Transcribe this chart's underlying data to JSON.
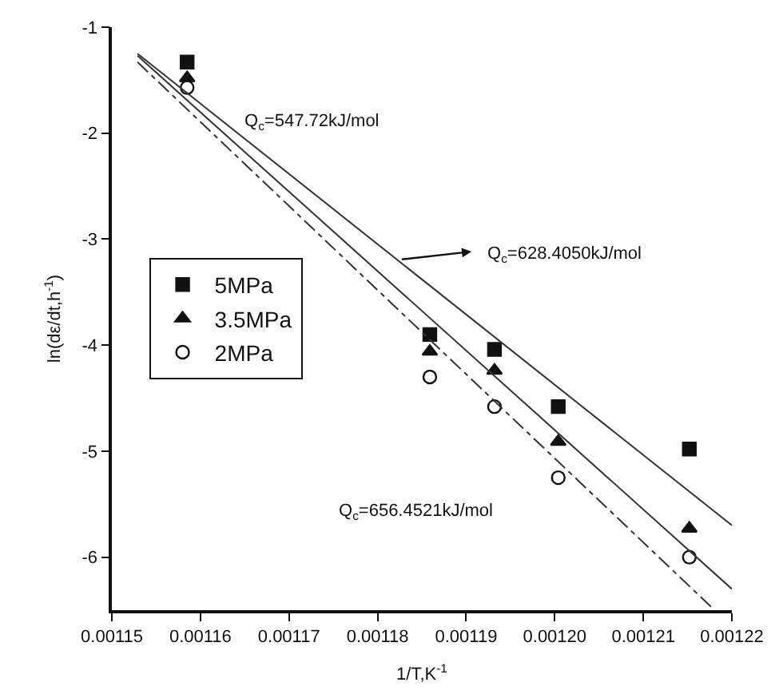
{
  "chart_data": {
    "type": "scatter",
    "xlabel": "1/T,K$^{-1}$",
    "ylabel": "ln(dε/dt,h$^{-1}$)",
    "xlim": [
      0.00115,
      0.00122
    ],
    "xticks": [
      0.00115,
      0.00116,
      0.00117,
      0.00118,
      0.00119,
      {
        "value": 0.0012,
        "label": "0.00120"
      },
      0.00121,
      0.00122
    ],
    "ylim": [
      -6.5,
      -1
    ],
    "yticks": [
      -1,
      -2,
      -3,
      -4,
      -5,
      -6
    ],
    "grid": false,
    "legend": "left",
    "series": [
      {
        "name": "5MPa",
        "color": "#111111",
        "marker": "square",
        "x": [
          0.0011585,
          0.0011859,
          0.0011932,
          0.0012004,
          0.0012152
        ],
        "values": [
          -1.33,
          -3.9,
          -4.04,
          -4.58,
          -4.98
        ]
      },
      {
        "name": "3.5MPa",
        "color": "#111111",
        "marker": "triangle",
        "x": [
          0.0011585,
          0.0011859,
          0.0011932,
          0.0012004,
          0.0012152
        ],
        "values": [
          -1.48,
          -4.06,
          -4.24,
          -4.91,
          -5.73
        ]
      },
      {
        "name": "2MPa",
        "color": "#111111",
        "marker": "circle-open",
        "x": [
          0.0011585,
          0.0011859,
          0.0011932,
          0.0012004,
          0.0012152
        ],
        "values": [
          -1.57,
          -4.3,
          -4.58,
          -5.25,
          -6.0
        ]
      },
      {
        "type": "line",
        "color": "#333333",
        "line_style": "solid",
        "x": [
          0.0011529,
          0.00122
        ],
        "values": [
          -1.25,
          -5.7
        ]
      },
      {
        "type": "line",
        "color": "#333333",
        "line_style": "solid",
        "x": [
          0.0011529,
          0.00122
        ],
        "values": [
          -1.27,
          -6.3
        ]
      },
      {
        "type": "line",
        "color": "#333333",
        "line_style": "dashed",
        "x": [
          0.0011529,
          0.0012178
        ],
        "values": [
          -1.33,
          -6.48
        ]
      }
    ],
    "annotations": [
      "Q$_{c}$=547.72kJ/mol",
      "Q$_{c}$=628.4050kJ/mol",
      "Q$_{c}$=656.4521kJ/mol"
    ]
  }
}
